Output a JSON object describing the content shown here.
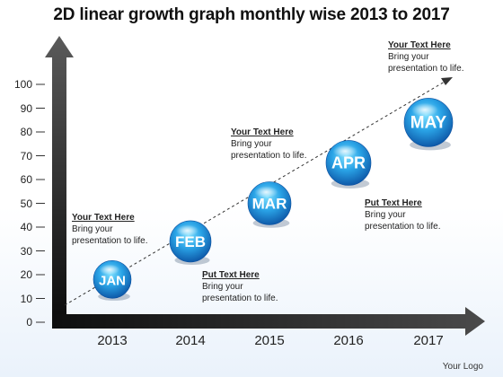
{
  "title": "2D linear growth graph monthly wise 2013 to 2017",
  "y_ticks": [
    "100",
    "90",
    "80",
    "70",
    "60",
    "50",
    "40",
    "30",
    "20",
    "10",
    "0"
  ],
  "x_ticks": [
    "2013",
    "2014",
    "2015",
    "2016",
    "2017"
  ],
  "bubbles": [
    {
      "label": "JAN",
      "year": "2013",
      "value": 18
    },
    {
      "label": "FEB",
      "year": "2014",
      "value": 34
    },
    {
      "label": "MAR",
      "year": "2015",
      "value": 50
    },
    {
      "label": "APR",
      "year": "2016",
      "value": 67
    },
    {
      "label": "MAY",
      "year": "2017",
      "value": 84
    }
  ],
  "callouts": [
    {
      "title": "Your Text Here",
      "body": "Bring your\npresentation to life."
    },
    {
      "title": "Put Text Here",
      "body": "Bring your\npresentation to life."
    },
    {
      "title": "Your Text Here",
      "body": "Bring your\npresentation to life."
    },
    {
      "title": "Put Text Here",
      "body": "Bring your\npresentation to life."
    },
    {
      "title": "Your Text Here",
      "body": "Bring your\npresentation to life."
    }
  ],
  "footer": {
    "logo": "Your Logo"
  },
  "colors": {
    "bubble_light": "#6cd0f5",
    "bubble_mid": "#1c8ad6",
    "bubble_dark": "#0a4fa0",
    "axis": "#1a1a1a"
  }
}
